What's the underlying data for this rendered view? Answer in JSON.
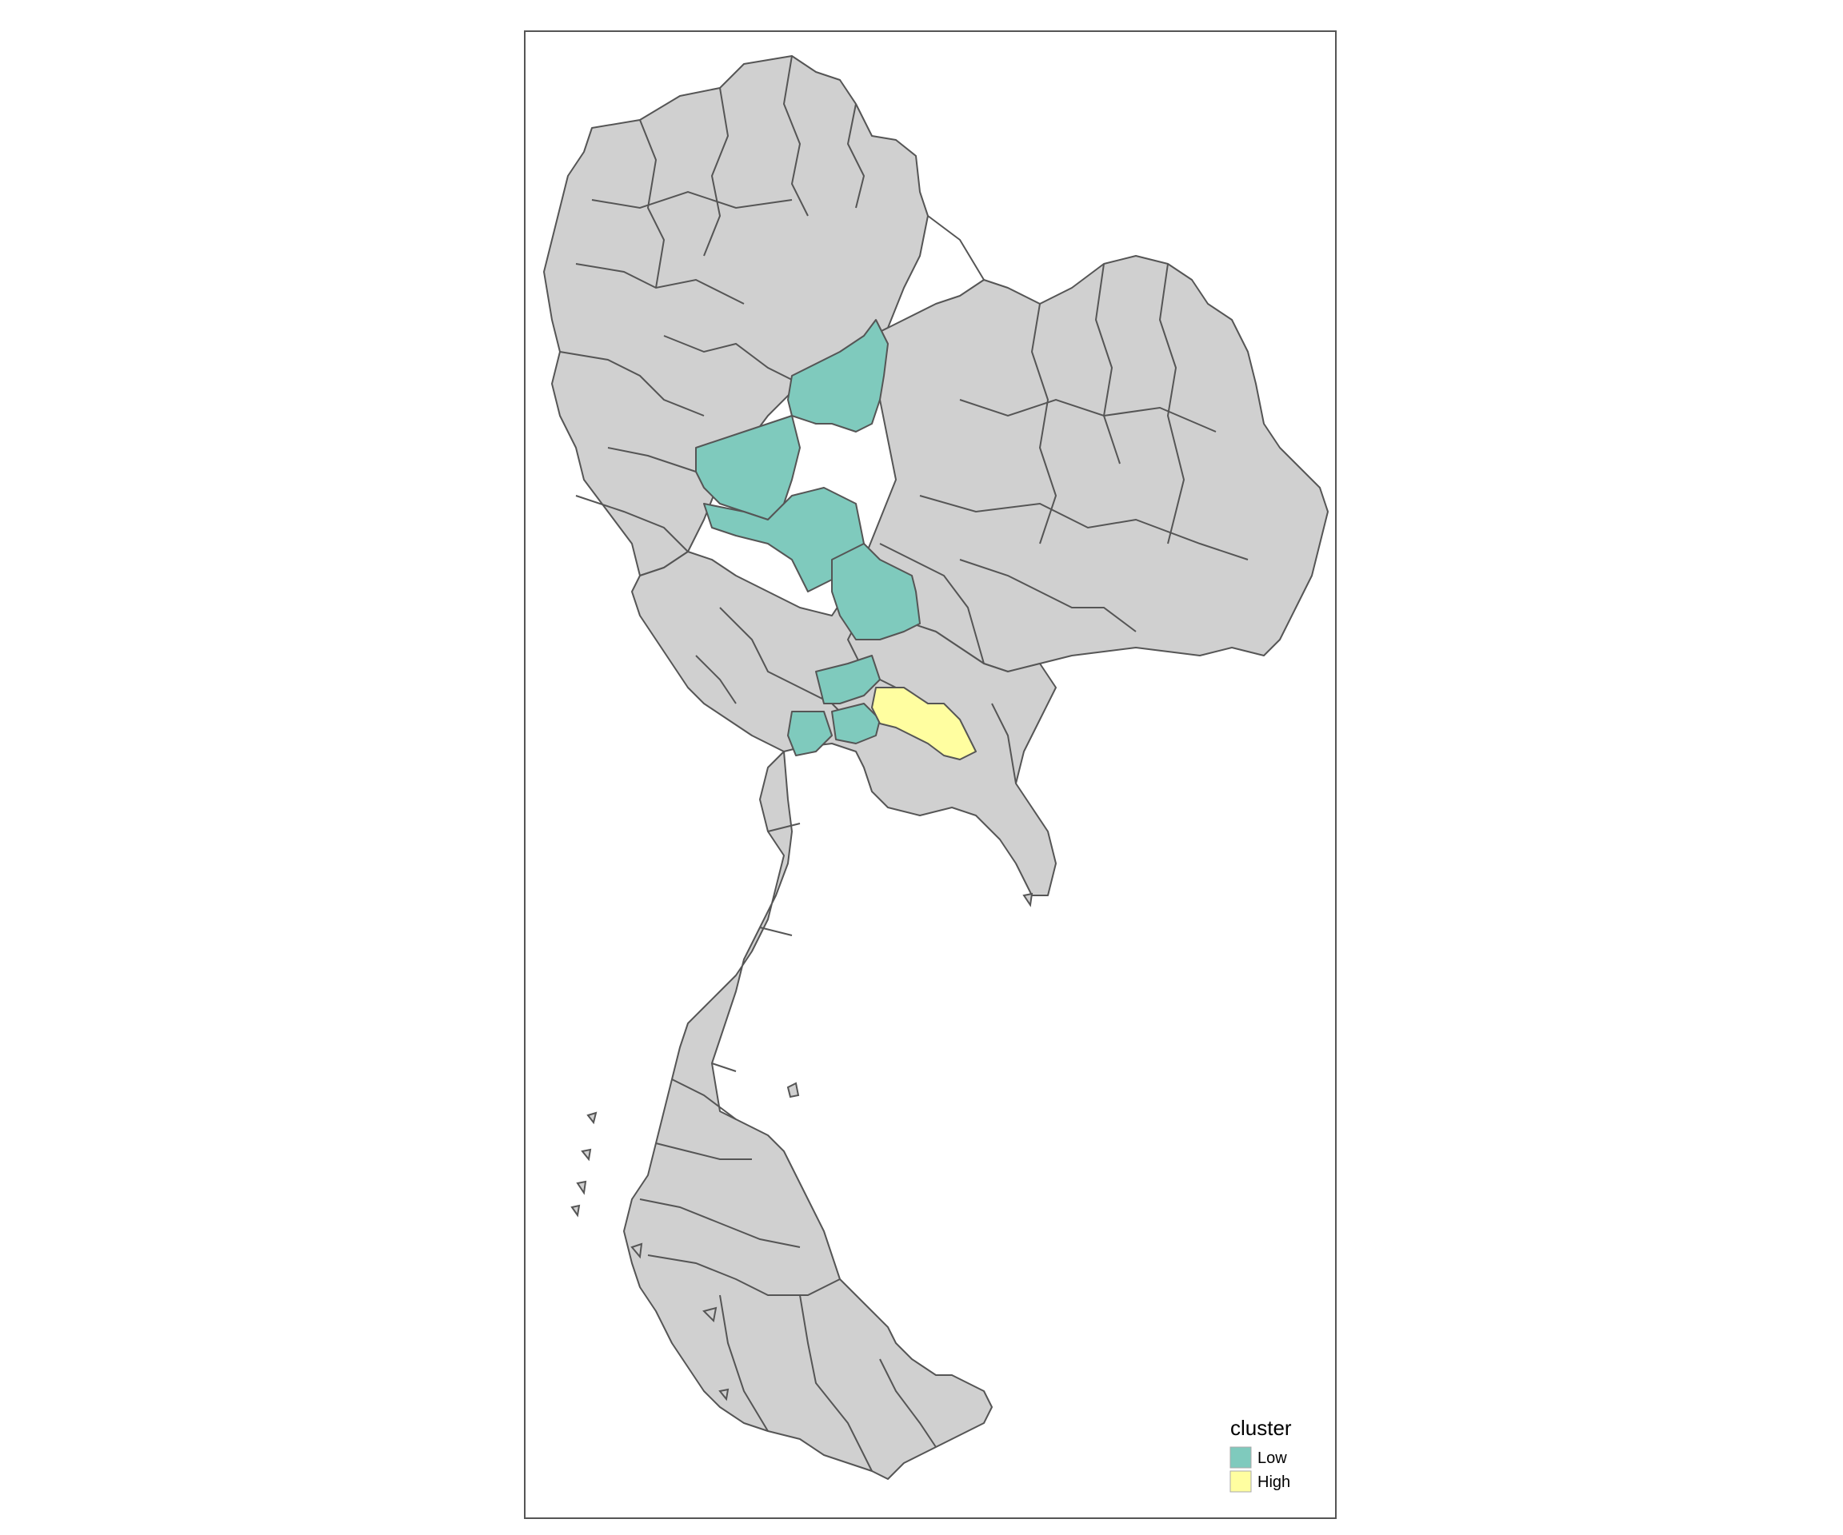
{
  "legend": {
    "title": "cluster",
    "items": [
      {
        "label": "Low",
        "color": "#7FCABD"
      },
      {
        "label": "High",
        "color": "#FFFEA0"
      }
    ]
  },
  "colors": {
    "unclustered": "#D0D0D0",
    "border": "#555555",
    "frame": "#555555",
    "background": "#FFFFFF"
  }
}
